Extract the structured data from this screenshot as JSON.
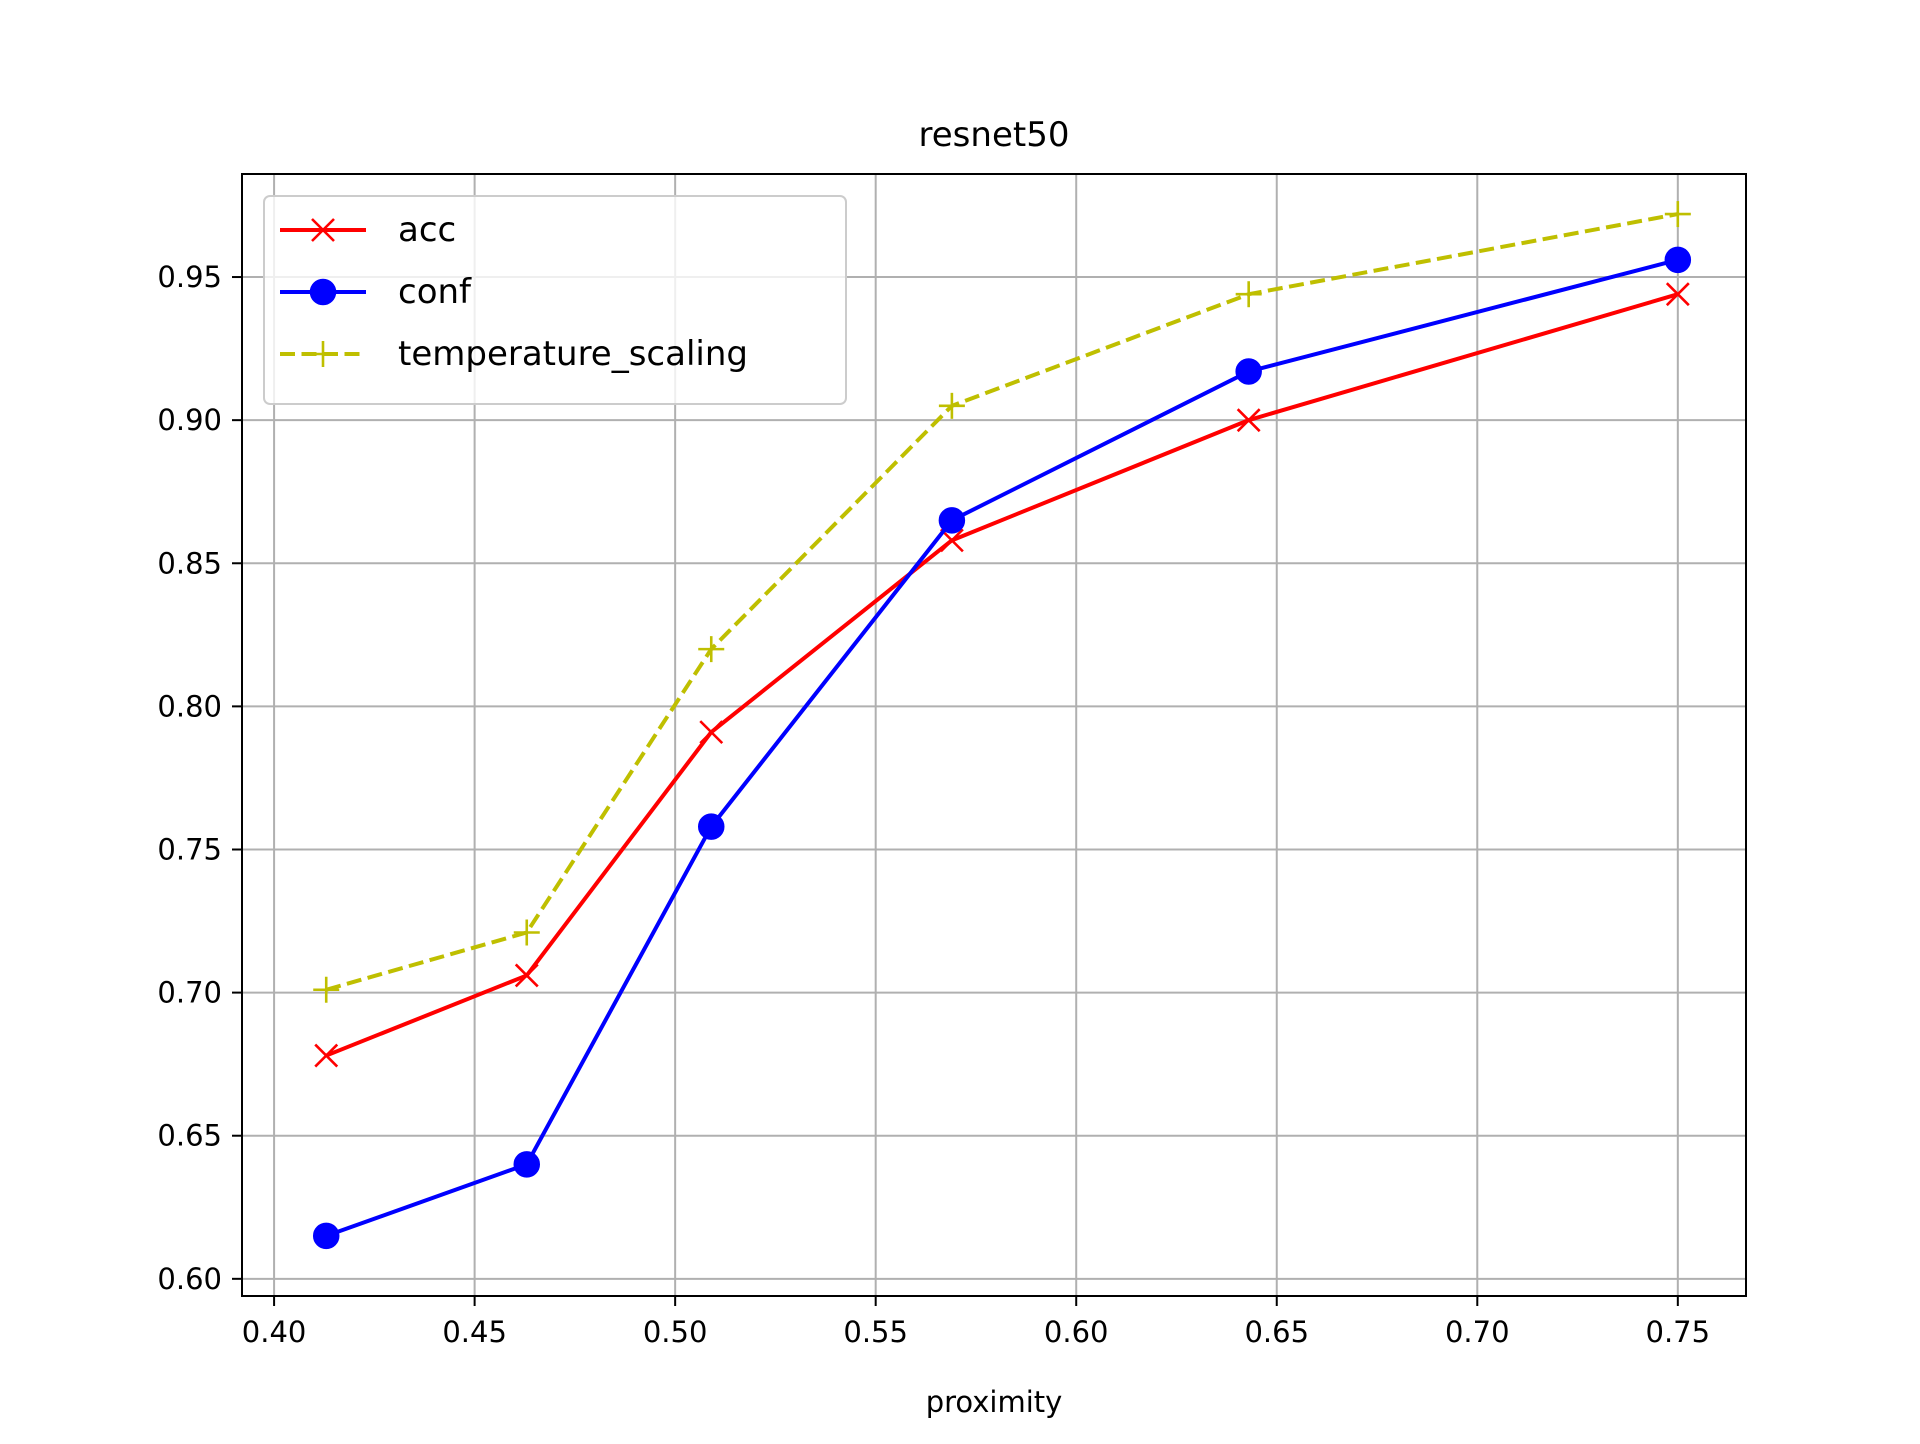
{
  "chart_data": {
    "type": "line",
    "title": "resnet50",
    "xlabel": "proximity",
    "ylabel": "",
    "xlim": [
      0.392,
      0.767
    ],
    "ylim": [
      0.594,
      0.986
    ],
    "xticks": [
      0.4,
      0.45,
      0.5,
      0.55,
      0.6,
      0.65,
      0.7,
      0.75
    ],
    "xtick_labels": [
      "0.40",
      "0.45",
      "0.50",
      "0.55",
      "0.60",
      "0.65",
      "0.70",
      "0.75"
    ],
    "yticks": [
      0.6,
      0.65,
      0.7,
      0.75,
      0.8,
      0.85,
      0.9,
      0.95
    ],
    "ytick_labels": [
      "0.60",
      "0.65",
      "0.70",
      "0.75",
      "0.80",
      "0.85",
      "0.90",
      "0.95"
    ],
    "grid": true,
    "legend_position": "top-left",
    "series": [
      {
        "name": "acc",
        "color": "#ff0000",
        "marker": "x",
        "linestyle": "solid",
        "x": [
          0.413,
          0.463,
          0.509,
          0.569,
          0.643,
          0.75
        ],
        "y": [
          0.678,
          0.706,
          0.791,
          0.858,
          0.9,
          0.944
        ]
      },
      {
        "name": "conf",
        "color": "#0000ff",
        "marker": "circle",
        "linestyle": "solid",
        "x": [
          0.413,
          0.463,
          0.509,
          0.569,
          0.643,
          0.75
        ],
        "y": [
          0.615,
          0.64,
          0.758,
          0.865,
          0.917,
          0.956
        ]
      },
      {
        "name": "temperature_scaling",
        "color": "#bfbf00",
        "marker": "plus",
        "linestyle": "dashed",
        "x": [
          0.413,
          0.463,
          0.509,
          0.569,
          0.643,
          0.75
        ],
        "y": [
          0.701,
          0.721,
          0.82,
          0.905,
          0.944,
          0.972
        ]
      }
    ]
  }
}
